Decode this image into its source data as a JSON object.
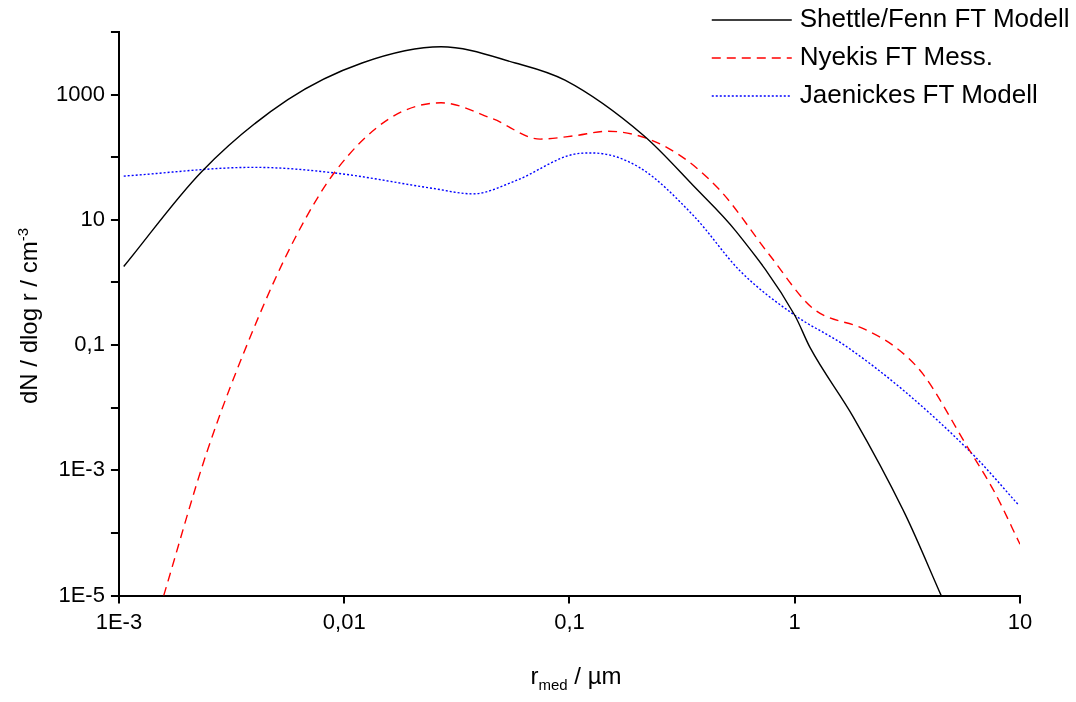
{
  "chart_data": {
    "type": "line",
    "xlabel": "r$_{med}$ / µm",
    "ylabel": "dN / dlog r / cm$^{-3}$",
    "log": "xy",
    "grid": false,
    "legend": "top right",
    "marker": "none",
    "xlim": [
      0.001,
      10
    ],
    "xticks": [
      {
        "value": 0.001,
        "label": "1E-3"
      },
      {
        "value": 0.01,
        "label": "0,01"
      },
      {
        "value": 0.1,
        "label": "0,1"
      },
      1,
      10
    ],
    "ylim": [
      1e-05,
      10000
    ],
    "yticks": [
      {
        "value": 1e-05,
        "label": "1E-5"
      },
      {
        "value": 0.0001,
        "label": null
      },
      {
        "value": 0.001,
        "label": "1E-3"
      },
      {
        "value": 0.01,
        "label": null
      },
      {
        "value": 0.1,
        "label": "0,1"
      },
      {
        "value": 1,
        "label": null
      },
      10,
      {
        "value": 100,
        "label": null
      },
      1000,
      {
        "value": 10000,
        "label": null
      }
    ],
    "series": [
      {
        "name": "Shettle/Fenn FT Modell",
        "color": "#000000",
        "line_style": "solid",
        "x": [
          0.00105,
          0.00234,
          0.00562,
          0.012,
          0.0269,
          0.0575,
          0.0955,
          0.214,
          0.355,
          0.55,
          1,
          1.17,
          1.82,
          3.09,
          4.47
        ],
        "values": [
          1.8,
          60,
          830,
          3200,
          5800,
          3200,
          1700,
          220,
          35,
          6.5,
          0.3,
          0.091,
          0.0071,
          0.0002,
          1e-05
        ]
      },
      {
        "name": "Nyekis FT Mess.",
        "color": "#ff0000",
        "line_style": "dashed",
        "x": [
          0.00158,
          0.00245,
          0.00398,
          0.00603,
          0.00912,
          0.0158,
          0.0269,
          0.0457,
          0.0741,
          0.105,
          0.148,
          0.269,
          0.457,
          0.776,
          1.2,
          2.04,
          2.82,
          3.72,
          5.75,
          7.76,
          10
        ],
        "values": [
          1e-05,
          0.0019,
          0.19,
          5,
          59,
          410,
          740,
          410,
          195,
          220,
          260,
          145,
          32,
          2.7,
          0.39,
          0.18,
          0.091,
          0.034,
          0.0026,
          0.00043,
          6.6e-05
        ]
      },
      {
        "name": "Jaenickes FT Modell",
        "color": "#0000ff",
        "line_style": "dotted",
        "x": [
          0.00105,
          0.00398,
          0.00912,
          0.0245,
          0.0372,
          0.0575,
          0.105,
          0.126,
          0.204,
          0.355,
          0.575,
          1,
          1.66,
          3.09,
          6.31,
          9.77
        ],
        "values": [
          50,
          69,
          56,
          32,
          26,
          42,
          112,
          117,
          69,
          11.7,
          1.5,
          0.3,
          0.1,
          0.018,
          0.00166,
          0.00029
        ]
      }
    ]
  }
}
